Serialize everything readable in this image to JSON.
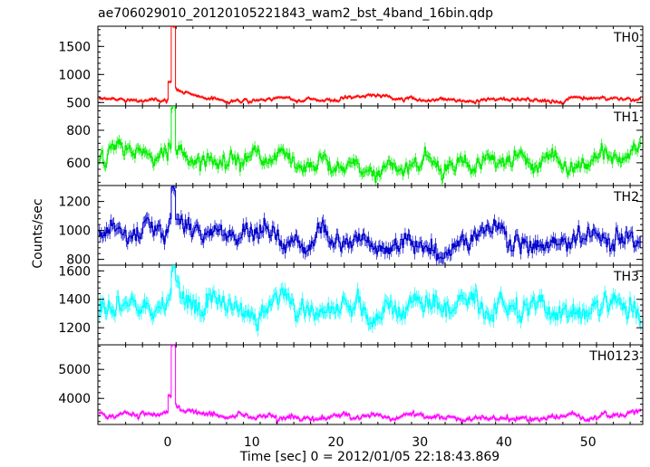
{
  "chart_data": {
    "type": "line",
    "title": "ae706029010_20120105221843_wam2_bst_4band_16bin.qdp",
    "xlabel": "Time [sec] 0 = 2012/01/05 22:18:43.869",
    "ylabel": "Counts/sec",
    "xlim": [
      -8.3,
      56.5
    ],
    "x_ticks": [
      "0",
      "10",
      "20",
      "30",
      "40",
      "50"
    ],
    "x_tick_values": [
      0,
      10,
      20,
      30,
      40,
      50
    ],
    "grid": false,
    "panels": [
      {
        "name": "TH0",
        "color": "#ff0000",
        "ylim": [
          440,
          1860
        ],
        "yticks": [
          500,
          1000,
          1500
        ],
        "yticklabels": [
          "500",
          "1000",
          "1500"
        ],
        "baseline": 560,
        "noise": 30,
        "error": 25,
        "burst": {
          "t": 0.45,
          "peak": 1860,
          "tail": 760,
          "decay": 2.5
        }
      },
      {
        "name": "TH1",
        "color": "#00ee00",
        "ylim": [
          460,
          950
        ],
        "yticks": [
          600,
          800
        ],
        "yticklabels": [
          "600",
          "800"
        ],
        "baseline": 620,
        "noise": 45,
        "error": 30,
        "burst": {
          "t": 0.45,
          "peak": 950,
          "tail": 700,
          "decay": 2.0
        }
      },
      {
        "name": "TH2",
        "color": "#0000cc",
        "ylim": [
          760,
          1310
        ],
        "yticks": [
          800,
          1000,
          1200
        ],
        "yticklabels": [
          "800",
          "1000",
          "1200"
        ],
        "baseline": 970,
        "noise": 60,
        "error": 40,
        "burst": {
          "t": 0.45,
          "peak": 1300,
          "tail": 1050,
          "decay": 1.5
        }
      },
      {
        "name": "TH3",
        "color": "#00ffff",
        "ylim": [
          1080,
          1640
        ],
        "yticks": [
          1200,
          1400,
          1600
        ],
        "yticklabels": [
          "1200",
          "1400",
          "1600"
        ],
        "baseline": 1320,
        "noise": 70,
        "error": 45,
        "burst": {
          "t": 0.45,
          "peak": 1640,
          "tail": 1400,
          "decay": 1.5
        }
      },
      {
        "name": "TH0123",
        "color": "#ff00ff",
        "ylim": [
          3100,
          5850
        ],
        "yticks": [
          4000,
          5000
        ],
        "yticklabels": [
          "4000",
          "5000"
        ],
        "baseline": 3420,
        "noise": 90,
        "error": 60,
        "burst": {
          "t": 0.45,
          "peak": 5850,
          "tail": 3750,
          "decay": 2.5
        }
      }
    ],
    "sampling": {
      "dt": 0.125,
      "seed": 12345
    }
  }
}
